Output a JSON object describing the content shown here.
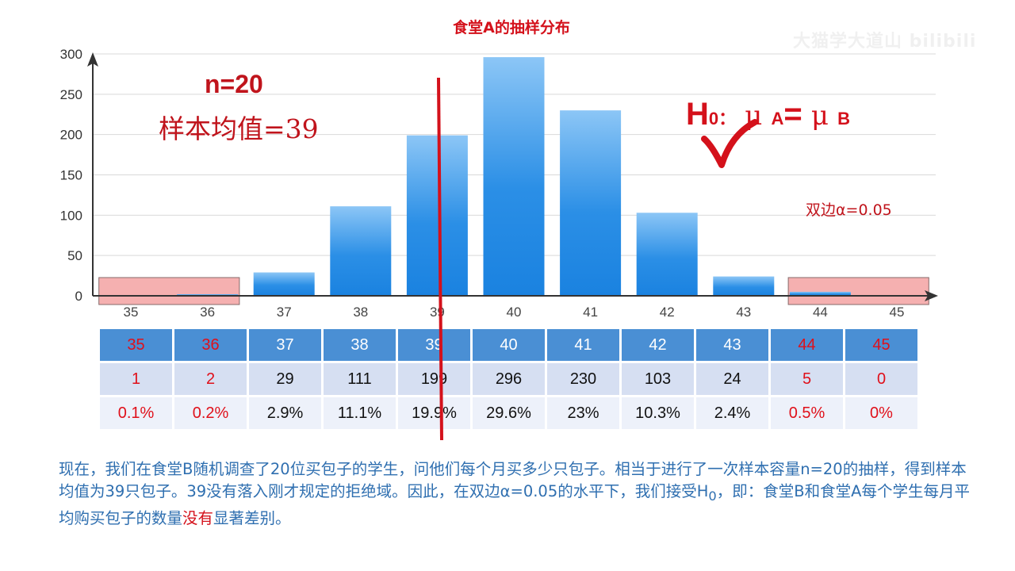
{
  "title": "食堂A的抽样分布",
  "watermark": "大猫学大道山 bilibili",
  "annotations": {
    "n": "n=20",
    "mean": "样本均值=39",
    "h0_main": "H",
    "h0_sub": "0",
    "h0_colon": "：",
    "mu1": "μ",
    "a_sub": "A",
    "equals": "= ",
    "mu2": "μ",
    "b_sub": "B",
    "alpha": "双边α=0.05"
  },
  "colors": {
    "accent_red": "#d4111b",
    "bar_top": "#8cc6f6",
    "bar_bottom": "#1a82e0",
    "rejection_fill": "#f4a8a8"
  },
  "chart_data": {
    "type": "bar",
    "title": "食堂A的抽样分布",
    "categories": [
      "35",
      "36",
      "37",
      "38",
      "39",
      "40",
      "41",
      "42",
      "43",
      "44",
      "45"
    ],
    "values": [
      1,
      2,
      29,
      111,
      199,
      296,
      230,
      103,
      24,
      5,
      0
    ],
    "yticks": [
      0,
      50,
      100,
      150,
      200,
      250,
      300
    ],
    "ylim": [
      0,
      300
    ],
    "grid": true,
    "rejection_region": [
      "35",
      "36",
      "44",
      "45"
    ],
    "marker_line_x": "39"
  },
  "table": {
    "x": [
      "35",
      "36",
      "37",
      "38",
      "39",
      "40",
      "41",
      "42",
      "43",
      "44",
      "45"
    ],
    "freq": [
      "1",
      "2",
      "29",
      "111",
      "199",
      "296",
      "230",
      "103",
      "24",
      "5",
      "0"
    ],
    "pct": [
      "0.1%",
      "0.2%",
      "2.9%",
      "11.1%",
      "19.9%",
      "29.6%",
      "23%",
      "10.3%",
      "2.4%",
      "0.5%",
      "0%"
    ],
    "rejection": [
      true,
      true,
      false,
      false,
      false,
      false,
      false,
      false,
      false,
      true,
      true
    ]
  },
  "paragraph": {
    "part1": "现在，我们在食堂B随机调查了20位买包子的学生，问他们每个月买多少只包子。相当于进行了一次样本容量n=20的抽样，得到样本均值为39只包子。39没有落入刚才规定的拒绝域。因此，在双边α=0.05的水平下，我们接受H",
    "sub0": "0",
    "part2": "，即：食堂B和食堂A每个学生每月平均购买包子的数量",
    "highlight": "没有",
    "part3": "显著差别。"
  }
}
